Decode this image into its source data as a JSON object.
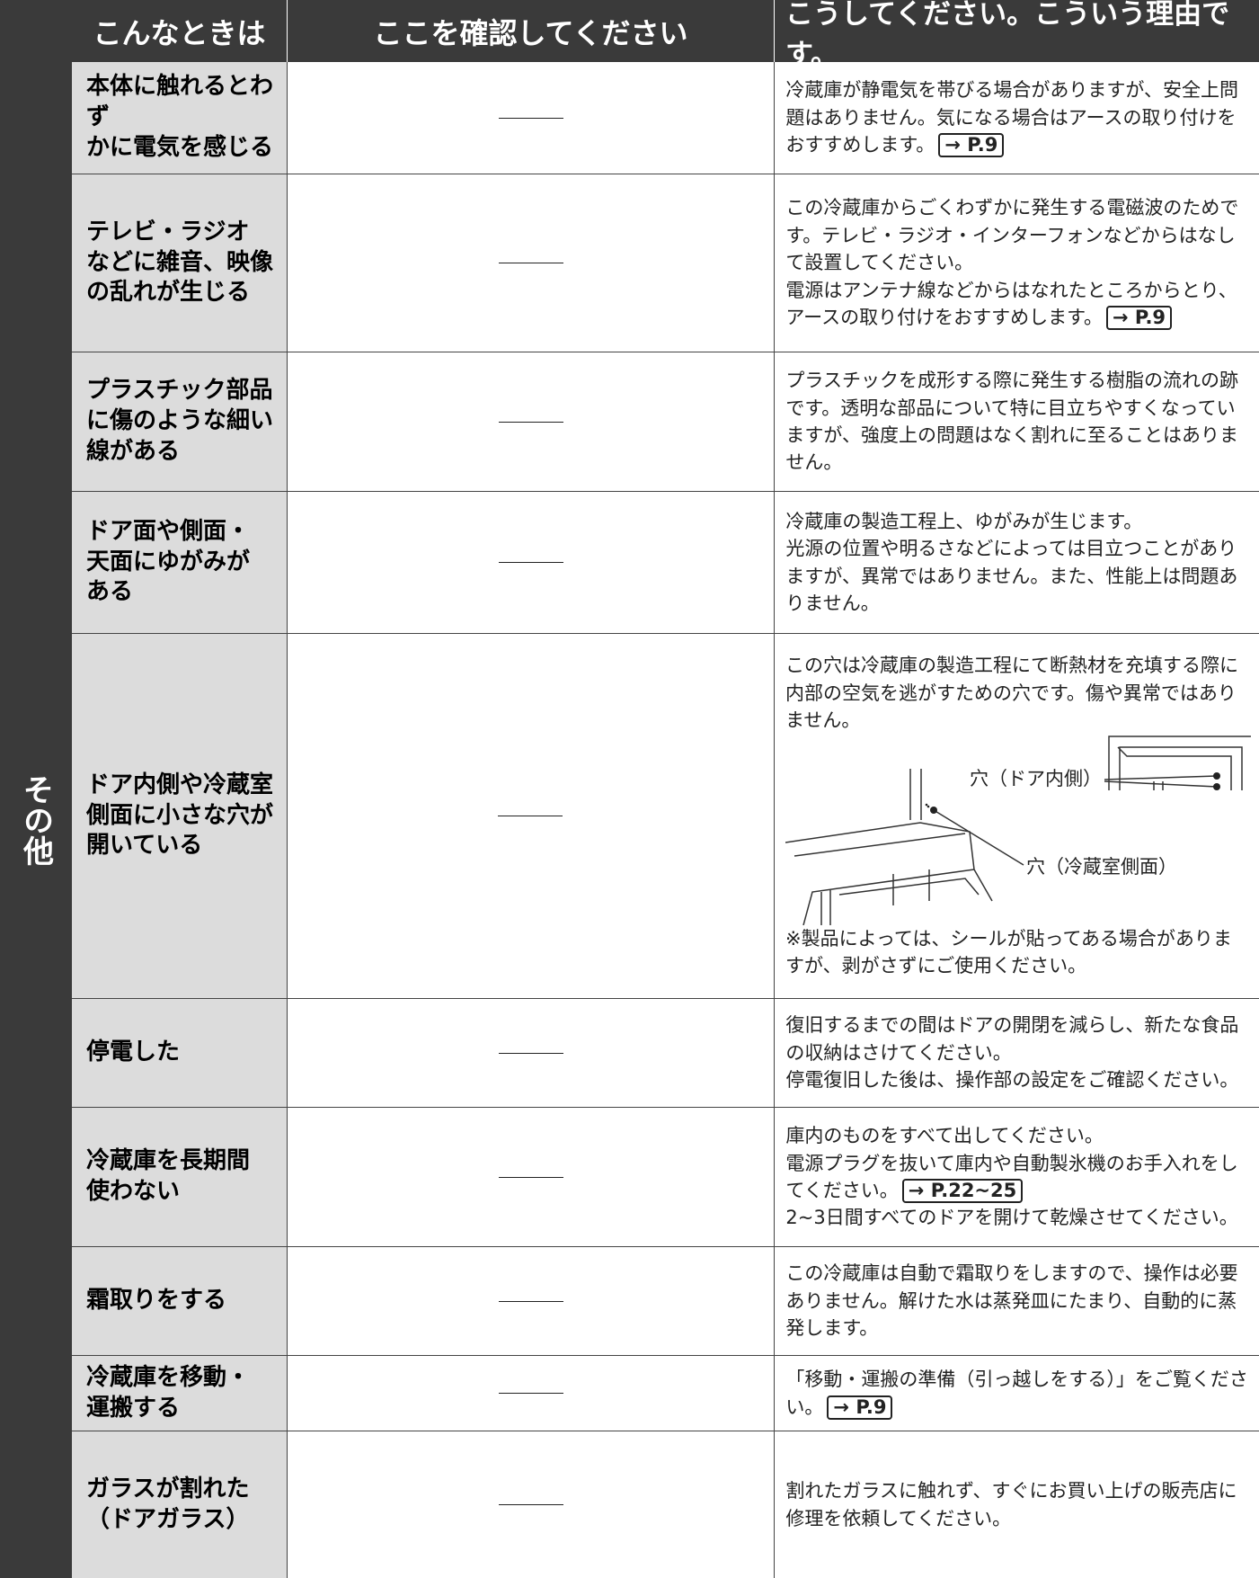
{
  "header": {
    "col1": "こんなときは",
    "col2": "ここを確認してください",
    "col3": "こうしてください。こういう理由です。"
  },
  "section": "その他",
  "rows": [
    {
      "symptom": [
        "本体に触れるとわず",
        "かに電気を感じる"
      ],
      "reason": [
        {
          "text": "冷蔵庫が静電気を帯びる場合がありますが、安全上問題はありません。気になる場合はアースの取り付けをおすすめします。",
          "ref": "→ P.9"
        }
      ]
    },
    {
      "symptom": [
        "テレビ・ラジオ",
        "などに雑音、映像",
        "の乱れが生じる"
      ],
      "reason": [
        {
          "text": "この冷蔵庫からごくわずかに発生する電磁波のためです。テレビ・ラジオ・インターフォンなどからはなして設置してください。"
        },
        {
          "text": "電源はアンテナ線などからはなれたところからとり、アースの取り付けをおすすめします。",
          "ref": "→ P.9"
        }
      ]
    },
    {
      "symptom": [
        "プラスチック部品",
        "に傷のような細い",
        "線がある"
      ],
      "reason": [
        {
          "text": "プラスチックを成形する際に発生する樹脂の流れの跡です。透明な部品について特に目立ちやすくなっていますが、強度上の問題はなく割れに至ることはありません。"
        }
      ]
    },
    {
      "symptom": [
        "ドア面や側面・",
        "天面にゆがみが",
        "ある"
      ],
      "reason": [
        {
          "text": "冷蔵庫の製造工程上、ゆがみが生じます。"
        },
        {
          "text": "光源の位置や明るさなどによっては目立つことがありますが、異常ではありません。また、性能上は問題ありません。"
        }
      ]
    },
    {
      "symptom": [
        "ドア内側や冷蔵室",
        "側面に小さな穴が",
        "開いている"
      ],
      "reason": [
        {
          "text": "この穴は冷蔵庫の製造工程にて断熱材を充填する際に内部の空気を逃がすための穴です。傷や異常ではありません。"
        }
      ],
      "figure": {
        "door_label": "穴（ドア内側）",
        "side_label": "穴（冷蔵室側面）"
      },
      "note": "※製品によっては、シールが貼ってある場合がありますが、剥がさずにご使用ください。"
    },
    {
      "symptom": [
        "停電した"
      ],
      "reason": [
        {
          "text": "復旧するまでの間はドアの開閉を減らし、新たな食品の収納はさけてください。"
        },
        {
          "text": "停電復旧した後は、操作部の設定をご確認ください。"
        }
      ]
    },
    {
      "symptom": [
        "冷蔵庫を長期間",
        "使わない"
      ],
      "reason": [
        {
          "text": "庫内のものをすべて出してください。"
        },
        {
          "text": "電源プラグを抜いて庫内や自動製氷機のお手入れをしてください。",
          "ref": "→ P.22~25"
        },
        {
          "text": "2~3日間すべてのドアを開けて乾燥させてください。"
        }
      ]
    },
    {
      "symptom": [
        "霜取りをする"
      ],
      "reason": [
        {
          "text": "この冷蔵庫は自動で霜取りをしますので、操作は必要ありません。解けた水は蒸発皿にたまり、自動的に蒸発します。"
        }
      ]
    },
    {
      "symptom": [
        "冷蔵庫を移動・",
        "運搬する"
      ],
      "reason": [
        {
          "text": "「移動・運搬の準備（引っ越しをする）」をご覧ください。",
          "ref": "→ P.9"
        }
      ]
    },
    {
      "symptom": [
        "ガラスが割れた",
        "（ドアガラス）"
      ],
      "reason": [
        {
          "text": "割れたガラスに触れず、すぐにお買い上げの販売店に修理を依頼してください。"
        }
      ]
    }
  ]
}
